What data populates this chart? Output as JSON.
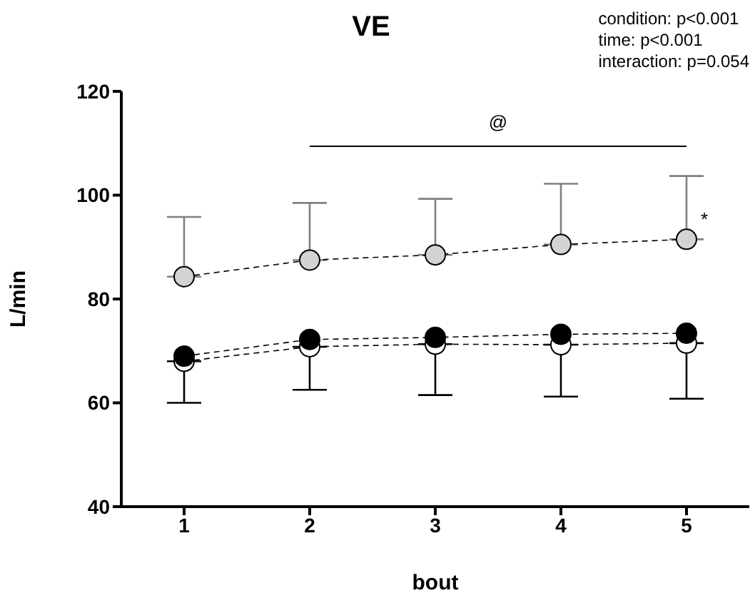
{
  "chart_data": {
    "type": "line",
    "title": "VE",
    "xlabel": "bout",
    "ylabel": "L/min",
    "x": [
      1,
      2,
      3,
      4,
      5
    ],
    "xlim": [
      0.5,
      5.5
    ],
    "xticks": [
      1,
      2,
      3,
      4,
      5
    ],
    "ylim": [
      40,
      120
    ],
    "yticks": [
      40,
      60,
      80,
      100,
      120
    ],
    "marker": "circle",
    "line_style": "dashed",
    "grid": false,
    "legend": false,
    "series": [
      {
        "color": "#d3d3d3",
        "values": [
          84.3,
          87.5,
          88.5,
          90.5,
          91.5
        ],
        "errors": [
          [
            84.3,
            95.8
          ],
          [
            87.5,
            98.5
          ],
          [
            88.5,
            99.3
          ],
          [
            90.5,
            102.2
          ],
          [
            91.5,
            103.7
          ]
        ]
      },
      {
        "color": "#ffffff",
        "values": [
          68,
          70.8,
          71.3,
          71.2,
          71.5
        ],
        "errors": [
          [
            60,
            68
          ],
          [
            62.5,
            70.8
          ],
          [
            61.5,
            71.3
          ],
          [
            61.2,
            71.2
          ],
          [
            60.8,
            71.5
          ]
        ]
      },
      {
        "color": "#000000",
        "values": [
          69,
          72.2,
          72.6,
          73.2,
          73.4
        ]
      }
    ],
    "annotations": [
      "condition: p<0.001",
      "time: p<0.001",
      "interaction: p=0.054",
      "@",
      "*"
    ]
  }
}
